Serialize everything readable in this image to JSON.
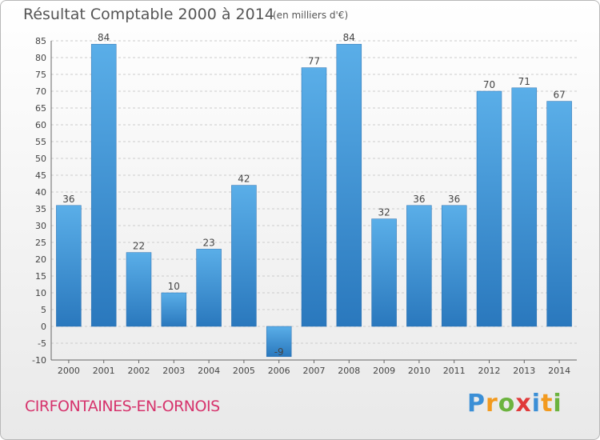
{
  "title": "Résultat Comptable 2000 à 2014",
  "subtitle": "(en milliers d'€)",
  "commune": "CIRFONTAINES-EN-ORNOIS",
  "logo": {
    "letters": [
      "P",
      "r",
      "o",
      "x",
      "i",
      "t",
      "i"
    ],
    "colors": [
      "#3b8fd6",
      "#f29a1f",
      "#6cb33f",
      "#e03a3a",
      "#3b8fd6",
      "#f29a1f",
      "#6cb33f"
    ]
  },
  "colors": {
    "bar_light": "#5aaee8",
    "bar_dark": "#2a78bd",
    "grid": "#cccccc"
  },
  "chart_data": {
    "type": "bar",
    "categories": [
      "2000",
      "2001",
      "2002",
      "2003",
      "2004",
      "2005",
      "2006",
      "2007",
      "2008",
      "2009",
      "2010",
      "2011",
      "2012",
      "2013",
      "2014"
    ],
    "values": [
      36,
      84,
      22,
      10,
      23,
      42,
      -9,
      77,
      84,
      32,
      36,
      36,
      70,
      71,
      67
    ],
    "data_labels": [
      "36",
      "84",
      "22",
      "10",
      "23",
      "42",
      "-9",
      "77",
      "84",
      "32",
      "36",
      "36",
      "70",
      "71",
      "67"
    ],
    "yticks": [
      -10,
      -5,
      0,
      5,
      10,
      15,
      20,
      25,
      30,
      35,
      40,
      45,
      50,
      55,
      60,
      65,
      70,
      75,
      80,
      85
    ],
    "ylim": [
      -10,
      85
    ],
    "grid": true
  }
}
